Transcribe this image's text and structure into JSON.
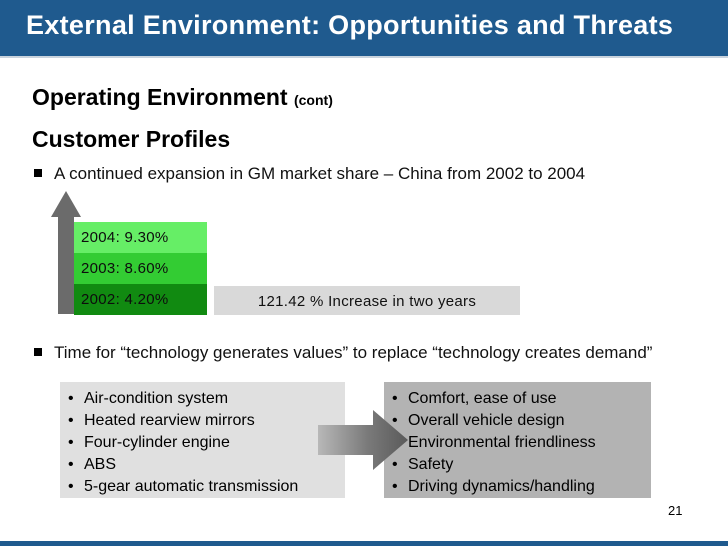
{
  "slide": {
    "title": "External Environment: Opportunities and Threats",
    "heading": "Operating Environment",
    "heading_suffix": "(cont)",
    "subheading": "Customer Profiles",
    "bullet_1": "A continued expansion in GM market share – China from 2002 to 2004",
    "bars": {
      "y2004": "2004: 9.30%",
      "y2003": "2003: 8.60%",
      "y2002": "2002: 4.20%"
    },
    "increase_label": "121.42 % Increase in two years",
    "bullet_2": "Time for “technology generates values” to replace “technology creates demand”",
    "left_items": [
      "Air-condition system",
      "Heated rearview mirrors",
      "Four-cylinder engine",
      "ABS",
      "5-gear automatic transmission"
    ],
    "right_items": [
      "Comfort, ease of use",
      "Overall vehicle design",
      "Environmental friendliness",
      "Safety",
      "Driving dynamics/handling"
    ],
    "page_number": "21",
    "colors": {
      "header": "#1f5a8e",
      "bar_2004": "#66ee66",
      "bar_2003": "#33cc33",
      "bar_2002": "#118a11"
    }
  }
}
